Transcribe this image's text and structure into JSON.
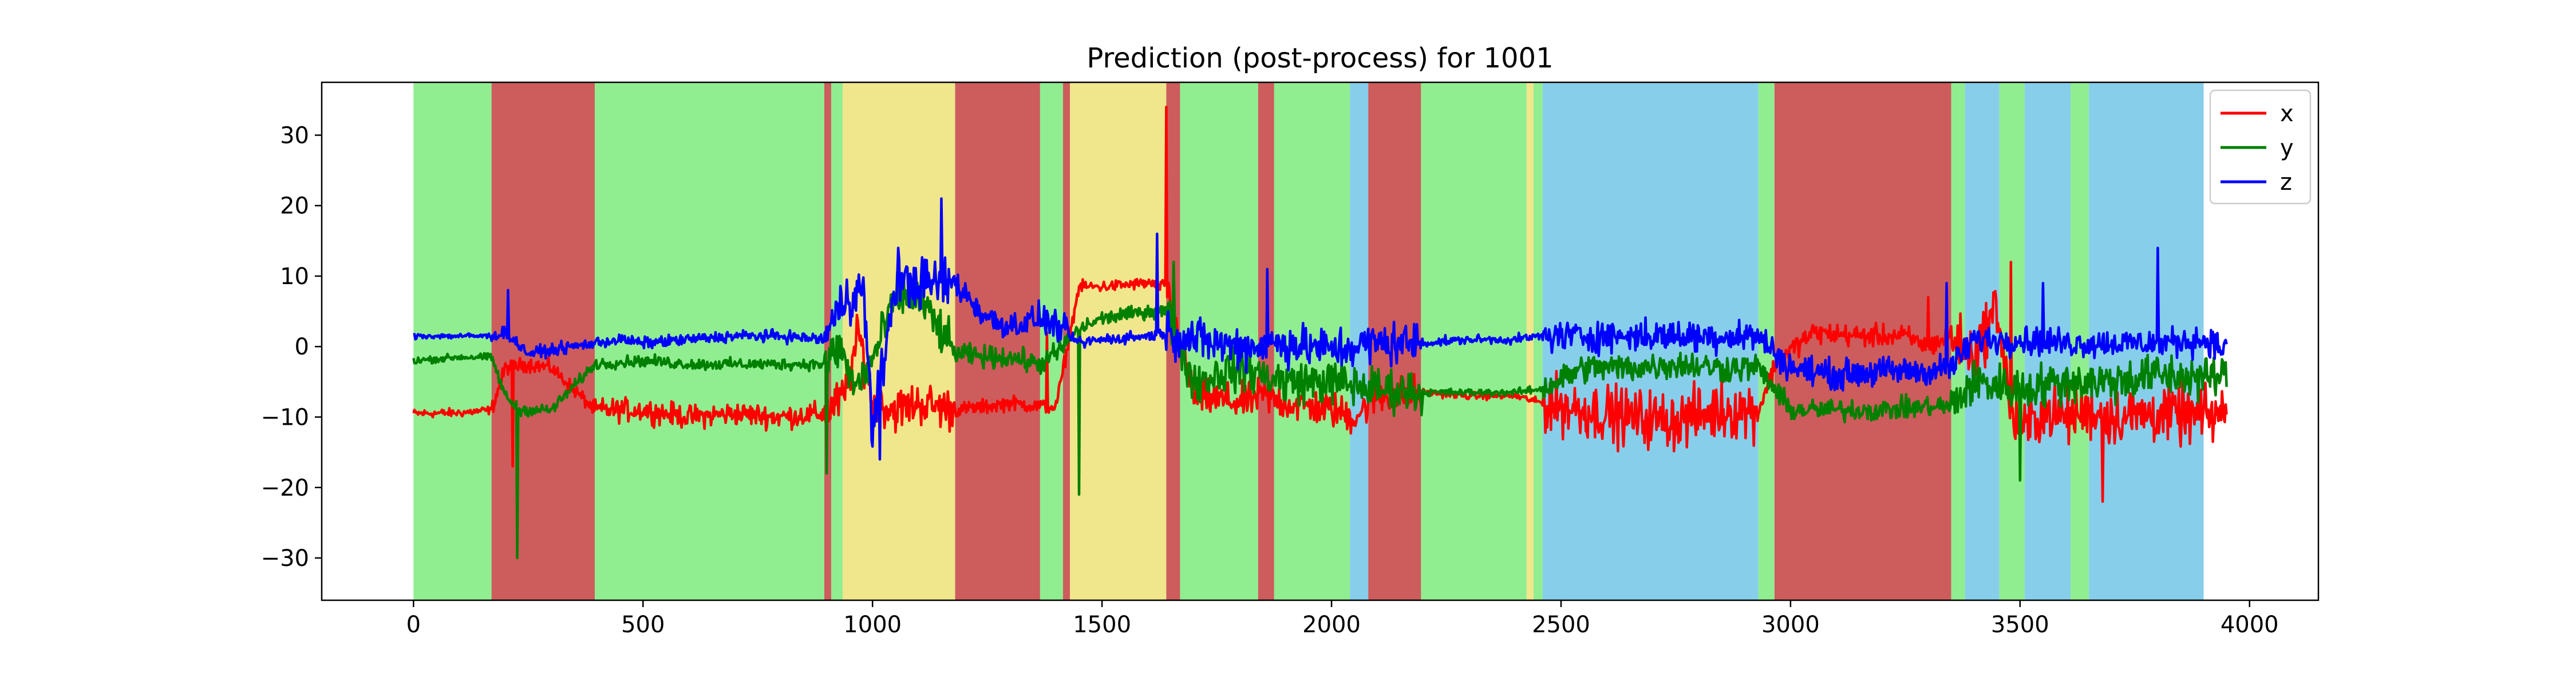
{
  "chart_data": {
    "type": "line",
    "title": "Prediction (post-process) for 1001",
    "xlabel": "",
    "ylabel": "",
    "xlim": [
      -200,
      4150
    ],
    "ylim": [
      -36,
      37.5
    ],
    "xticks": [
      0,
      500,
      1000,
      1500,
      2000,
      2500,
      3000,
      3500,
      4000
    ],
    "yticks": [
      -30,
      -20,
      -10,
      0,
      10,
      20,
      30
    ],
    "xtick_labels": [
      "0",
      "500",
      "1000",
      "1500",
      "2000",
      "2500",
      "3000",
      "3500",
      "4000"
    ],
    "ytick_labels": [
      "−30",
      "−20",
      "−10",
      "0",
      "10",
      "20",
      "30"
    ],
    "grid": false,
    "legend": {
      "placement": "top-right",
      "entries": [
        "x",
        "y",
        "z"
      ]
    },
    "background_spans": [
      {
        "x0": 0,
        "x1": 170,
        "class": "green"
      },
      {
        "x0": 170,
        "x1": 395,
        "class": "red"
      },
      {
        "x0": 395,
        "x1": 895,
        "class": "green"
      },
      {
        "x0": 895,
        "x1": 910,
        "class": "red"
      },
      {
        "x0": 910,
        "x1": 935,
        "class": "green"
      },
      {
        "x0": 935,
        "x1": 1180,
        "class": "yellow"
      },
      {
        "x0": 1180,
        "x1": 1365,
        "class": "red"
      },
      {
        "x0": 1365,
        "x1": 1415,
        "class": "green"
      },
      {
        "x0": 1415,
        "x1": 1430,
        "class": "red"
      },
      {
        "x0": 1430,
        "x1": 1640,
        "class": "yellow"
      },
      {
        "x0": 1640,
        "x1": 1670,
        "class": "red"
      },
      {
        "x0": 1670,
        "x1": 1840,
        "class": "green"
      },
      {
        "x0": 1840,
        "x1": 1875,
        "class": "red"
      },
      {
        "x0": 1875,
        "x1": 2040,
        "class": "green"
      },
      {
        "x0": 2040,
        "x1": 2080,
        "class": "blue"
      },
      {
        "x0": 2080,
        "x1": 2195,
        "class": "red"
      },
      {
        "x0": 2195,
        "x1": 2425,
        "class": "green"
      },
      {
        "x0": 2425,
        "x1": 2440,
        "class": "yellow"
      },
      {
        "x0": 2440,
        "x1": 2460,
        "class": "green"
      },
      {
        "x0": 2460,
        "x1": 2930,
        "class": "blue"
      },
      {
        "x0": 2930,
        "x1": 2965,
        "class": "green"
      },
      {
        "x0": 2965,
        "x1": 3350,
        "class": "red"
      },
      {
        "x0": 3350,
        "x1": 3380,
        "class": "green"
      },
      {
        "x0": 3380,
        "x1": 3455,
        "class": "blue"
      },
      {
        "x0": 3455,
        "x1": 3510,
        "class": "green"
      },
      {
        "x0": 3510,
        "x1": 3610,
        "class": "blue"
      },
      {
        "x0": 3610,
        "x1": 3650,
        "class": "green"
      },
      {
        "x0": 3650,
        "x1": 3900,
        "class": "blue"
      }
    ],
    "span_colors": {
      "green": "#90ee90",
      "red": "#cd5c5c",
      "yellow": "#f0e68c",
      "blue": "#87ceeb"
    },
    "series": [
      {
        "name": "x",
        "color": "#ff0000",
        "x": [
          0,
          100,
          170,
          200,
          250,
          300,
          395,
          500,
          600,
          700,
          800,
          895,
          940,
          970,
          1000,
          1050,
          1100,
          1180,
          1250,
          1300,
          1365,
          1400,
          1450,
          1500,
          1600,
          1640,
          1700,
          1800,
          1850,
          1900,
          1950,
          2000,
          2050,
          2100,
          2200,
          2300,
          2400,
          2460,
          2550,
          2650,
          2750,
          2850,
          2930,
          2970,
          3050,
          3150,
          3250,
          3300,
          3350,
          3400,
          3450,
          3480,
          3510,
          3550,
          3600,
          3650,
          3700,
          3800,
          3900,
          3950
        ],
        "y": [
          -9.5,
          -9.4,
          -9,
          -3,
          -2.5,
          -3,
          -9,
          -9,
          -10,
          -9.5,
          -10,
          -9.5,
          -7,
          2,
          -8,
          -9,
          -8,
          -9,
          -8.5,
          -8,
          -8.5,
          -8.5,
          8.5,
          8.5,
          9,
          8.5,
          -7,
          -8,
          -7,
          -8,
          -8.5,
          -9,
          -10,
          -7,
          -6.5,
          -7,
          -7,
          -8,
          -9,
          -10,
          -10.5,
          -9,
          -9,
          -2,
          2,
          1.5,
          1.5,
          0,
          1.5,
          -1.5,
          6,
          -10,
          -12,
          -9,
          -10,
          -9,
          -10,
          -9.5,
          -10,
          -9.5
        ],
        "noise": [
          {
            "x0": 0,
            "x1": 170,
            "amp": 0.6
          },
          {
            "x0": 170,
            "x1": 395,
            "amp": 1.0
          },
          {
            "x0": 395,
            "x1": 895,
            "amp": 1.6
          },
          {
            "x0": 895,
            "x1": 1180,
            "amp": 3.0
          },
          {
            "x0": 1180,
            "x1": 1430,
            "amp": 1.0
          },
          {
            "x0": 1430,
            "x1": 1640,
            "amp": 0.8
          },
          {
            "x0": 1640,
            "x1": 2200,
            "amp": 2.5
          },
          {
            "x0": 2200,
            "x1": 2460,
            "amp": 0.5
          },
          {
            "x0": 2460,
            "x1": 2930,
            "amp": 4.0
          },
          {
            "x0": 2930,
            "x1": 3350,
            "amp": 1.5
          },
          {
            "x0": 3350,
            "x1": 3950,
            "amp": 4.0
          }
        ],
        "spikes": [
          [
            215,
            -17
          ],
          [
            1380,
            2
          ],
          [
            1640,
            34
          ],
          [
            3300,
            7
          ],
          [
            3480,
            12
          ],
          [
            3680,
            -22
          ]
        ]
      },
      {
        "name": "y",
        "color": "#008000",
        "x": [
          0,
          100,
          170,
          200,
          230,
          300,
          395,
          500,
          600,
          700,
          800,
          895,
          930,
          960,
          1000,
          1050,
          1100,
          1180,
          1250,
          1300,
          1365,
          1400,
          1450,
          1500,
          1600,
          1640,
          1700,
          1800,
          1900,
          2000,
          2100,
          2200,
          2300,
          2400,
          2460,
          2550,
          2650,
          2750,
          2850,
          2930,
          3000,
          3100,
          3200,
          3300,
          3350,
          3400,
          3500,
          3600,
          3700,
          3800,
          3900,
          3950
        ],
        "y": [
          -2,
          -1.5,
          -1.5,
          -7,
          -9,
          -9,
          -2.5,
          -2,
          -2.5,
          -2.5,
          -2.5,
          -2.5,
          0,
          -6,
          -2,
          7,
          7,
          -1,
          -1.5,
          -1.5,
          -2.5,
          -1,
          2.5,
          4,
          5,
          5,
          -5,
          -3,
          -5,
          -5,
          -6,
          -6.5,
          -6.5,
          -6.5,
          -6,
          -3,
          -3,
          -2.5,
          -3,
          -3,
          -9,
          -9,
          -9,
          -8.5,
          -8.5,
          -5,
          -6,
          -5,
          -5,
          -4,
          -4.5,
          -4
        ],
        "noise": [
          {
            "x0": 0,
            "x1": 170,
            "amp": 0.5
          },
          {
            "x0": 170,
            "x1": 395,
            "amp": 0.8
          },
          {
            "x0": 395,
            "x1": 895,
            "amp": 0.8
          },
          {
            "x0": 895,
            "x1": 1180,
            "amp": 3.0
          },
          {
            "x0": 1180,
            "x1": 1430,
            "amp": 1.5
          },
          {
            "x0": 1430,
            "x1": 1640,
            "amp": 1.0
          },
          {
            "x0": 1640,
            "x1": 2200,
            "amp": 3.0
          },
          {
            "x0": 2200,
            "x1": 2460,
            "amp": 0.5
          },
          {
            "x0": 2460,
            "x1": 2930,
            "amp": 2.0
          },
          {
            "x0": 2930,
            "x1": 3350,
            "amp": 1.5
          },
          {
            "x0": 3350,
            "x1": 3950,
            "amp": 3.0
          }
        ],
        "spikes": [
          [
            225,
            -30
          ],
          [
            900,
            -18
          ],
          [
            1450,
            -21
          ],
          [
            1655,
            12
          ],
          [
            3500,
            -19
          ]
        ]
      },
      {
        "name": "z",
        "color": "#0000ff",
        "x": [
          0,
          100,
          170,
          200,
          250,
          300,
          395,
          450,
          500,
          600,
          700,
          800,
          895,
          940,
          980,
          1000,
          1050,
          1100,
          1150,
          1180,
          1250,
          1300,
          1365,
          1400,
          1450,
          1500,
          1600,
          1640,
          1700,
          1800,
          1900,
          2000,
          2100,
          2200,
          2300,
          2400,
          2460,
          2550,
          2650,
          2750,
          2850,
          2930,
          3000,
          3100,
          3200,
          3300,
          3350,
          3400,
          3500,
          3600,
          3700,
          3800,
          3900,
          3950
        ],
        "y": [
          1.5,
          1.5,
          1.5,
          2,
          -1,
          -0.5,
          0.5,
          1,
          0.5,
          1,
          1.5,
          1.5,
          1,
          7,
          8,
          -12,
          9,
          9,
          9,
          9,
          4,
          3,
          4,
          3,
          0.5,
          1,
          1.5,
          2,
          1,
          0,
          0.5,
          -0.5,
          0.5,
          0.5,
          1,
          1,
          1.5,
          1.5,
          1.5,
          1.5,
          1.5,
          1.5,
          -3,
          -4,
          -3.5,
          -3.5,
          -3,
          1,
          1,
          0.5,
          0.5,
          0.5,
          1,
          -0.5
        ],
        "noise": [
          {
            "x0": 0,
            "x1": 170,
            "amp": 0.4
          },
          {
            "x0": 170,
            "x1": 395,
            "amp": 0.8
          },
          {
            "x0": 395,
            "x1": 895,
            "amp": 0.8
          },
          {
            "x0": 895,
            "x1": 1180,
            "amp": 3.5
          },
          {
            "x0": 1180,
            "x1": 1430,
            "amp": 2.0
          },
          {
            "x0": 1430,
            "x1": 1640,
            "amp": 0.8
          },
          {
            "x0": 1640,
            "x1": 2200,
            "amp": 3.0
          },
          {
            "x0": 2200,
            "x1": 2460,
            "amp": 0.6
          },
          {
            "x0": 2460,
            "x1": 2930,
            "amp": 2.2
          },
          {
            "x0": 2930,
            "x1": 3350,
            "amp": 2.0
          },
          {
            "x0": 3350,
            "x1": 3950,
            "amp": 2.0
          }
        ],
        "spikes": [
          [
            205,
            8
          ],
          [
            1015,
            -16
          ],
          [
            1055,
            14
          ],
          [
            1150,
            21
          ],
          [
            1620,
            16
          ],
          [
            1860,
            11
          ],
          [
            3340,
            9
          ],
          [
            3550,
            9
          ],
          [
            3800,
            14
          ]
        ]
      }
    ]
  }
}
